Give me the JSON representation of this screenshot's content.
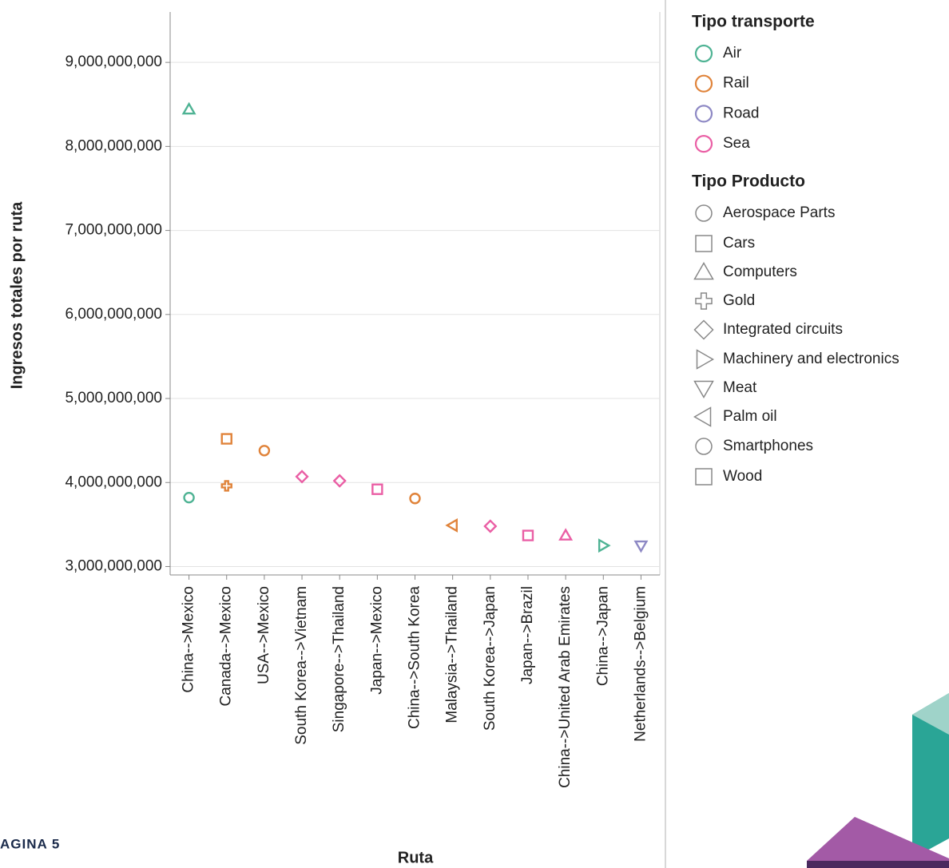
{
  "chart_data": {
    "type": "scatter",
    "page_label": "AGINA 5",
    "x_label": "Ruta",
    "y_label": "Ingresos totales por ruta",
    "categories": [
      "China-->Mexico",
      "Canada-->Mexico",
      "USA-->Mexico",
      "South Korea-->Vietnam",
      "Singapore-->Thailand",
      "Japan-->Mexico",
      "China-->South Korea",
      "Malaysia-->Thailand",
      "South Korea-->Japan",
      "Japan-->Brazil",
      "China-->United Arab Emirates",
      "China-->Japan",
      "Netherlands-->Belgium"
    ],
    "ylim": [
      2900000000,
      9600000000
    ],
    "yticks": [
      {
        "value": 3000000000,
        "label": "3,000,000,000"
      },
      {
        "value": 4000000000,
        "label": "4,000,000,000"
      },
      {
        "value": 5000000000,
        "label": "5,000,000,000"
      },
      {
        "value": 6000000000,
        "label": "6,000,000,000"
      },
      {
        "value": 7000000000,
        "label": "7,000,000,000"
      },
      {
        "value": 8000000000,
        "label": "8,000,000,000"
      },
      {
        "value": 9000000000,
        "label": "9,000,000,000"
      }
    ],
    "grid": true,
    "color_legend": {
      "title": "Tipo transporte",
      "items": [
        {
          "name": "Air",
          "color": "#4fb394"
        },
        {
          "name": "Rail",
          "color": "#e0833a"
        },
        {
          "name": "Road",
          "color": "#8d88c4"
        },
        {
          "name": "Sea",
          "color": "#ea5fa5"
        }
      ]
    },
    "shape_legend": {
      "title": "Tipo Producto",
      "color": "#888888",
      "items": [
        {
          "name": "Aerospace Parts",
          "shape": "circle"
        },
        {
          "name": "Cars",
          "shape": "square"
        },
        {
          "name": "Computers",
          "shape": "triangle-up"
        },
        {
          "name": "Gold",
          "shape": "cross"
        },
        {
          "name": "Integrated circuits",
          "shape": "diamond"
        },
        {
          "name": "Machinery and electronics",
          "shape": "triangle-right"
        },
        {
          "name": "Meat",
          "shape": "triangle-down"
        },
        {
          "name": "Palm oil",
          "shape": "triangle-left"
        },
        {
          "name": "Smartphones",
          "shape": "circle"
        },
        {
          "name": "Wood",
          "shape": "square"
        }
      ]
    },
    "points": [
      {
        "x": "China-->Mexico",
        "transport": "Air",
        "product": "Computers",
        "y": 8440000000
      },
      {
        "x": "China-->Mexico",
        "transport": "Air",
        "product": "Aerospace Parts",
        "y": 3820000000
      },
      {
        "x": "Canada-->Mexico",
        "transport": "Rail",
        "product": "Cars",
        "y": 4520000000
      },
      {
        "x": "Canada-->Mexico",
        "transport": "Rail",
        "product": "Gold",
        "y": 3960000000
      },
      {
        "x": "USA-->Mexico",
        "transport": "Rail",
        "product": "Smartphones",
        "y": 4380000000
      },
      {
        "x": "South Korea-->Vietnam",
        "transport": "Sea",
        "product": "Integrated circuits",
        "y": 4070000000
      },
      {
        "x": "Singapore-->Thailand",
        "transport": "Sea",
        "product": "Integrated circuits",
        "y": 4020000000
      },
      {
        "x": "Japan-->Mexico",
        "transport": "Sea",
        "product": "Cars",
        "y": 3920000000
      },
      {
        "x": "China-->South Korea",
        "transport": "Rail",
        "product": "Aerospace Parts",
        "y": 3810000000
      },
      {
        "x": "Malaysia-->Thailand",
        "transport": "Rail",
        "product": "Palm oil",
        "y": 3490000000
      },
      {
        "x": "South Korea-->Japan",
        "transport": "Sea",
        "product": "Integrated circuits",
        "y": 3480000000
      },
      {
        "x": "Japan-->Brazil",
        "transport": "Sea",
        "product": "Cars",
        "y": 3370000000
      },
      {
        "x": "China-->United Arab Emirates",
        "transport": "Sea",
        "product": "Computers",
        "y": 3370000000
      },
      {
        "x": "China-->Japan",
        "transport": "Air",
        "product": "Machinery and electronics",
        "y": 3250000000
      },
      {
        "x": "Netherlands-->Belgium",
        "transport": "Road",
        "product": "Meat",
        "y": 3250000000
      }
    ]
  }
}
